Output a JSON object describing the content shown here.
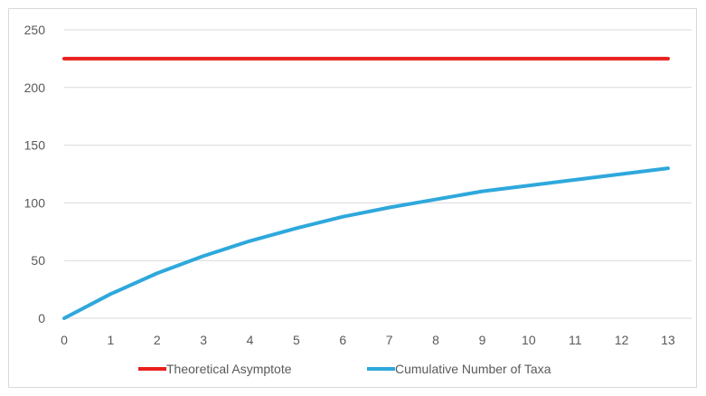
{
  "chart_data": {
    "type": "line",
    "x": [
      0,
      1,
      2,
      3,
      4,
      5,
      6,
      7,
      8,
      9,
      10,
      11,
      12,
      13
    ],
    "y_ticks": [
      0,
      50,
      100,
      150,
      200,
      250
    ],
    "ylim": [
      0,
      250
    ],
    "xlim": [
      0,
      13
    ],
    "grid": "horizontal",
    "legend_position": "bottom",
    "series": [
      {
        "name": "Theoretical Asymptote",
        "color": "#e8201e",
        "values": [
          225,
          225,
          225,
          225,
          225,
          225,
          225,
          225,
          225,
          225,
          225,
          225,
          225,
          225
        ]
      },
      {
        "name": "Cumulative Number of Taxa",
        "color": "#2ea8dc",
        "values": [
          0,
          21,
          39,
          54,
          67,
          78,
          88,
          96,
          103,
          110,
          115,
          120,
          125,
          130
        ]
      }
    ]
  }
}
